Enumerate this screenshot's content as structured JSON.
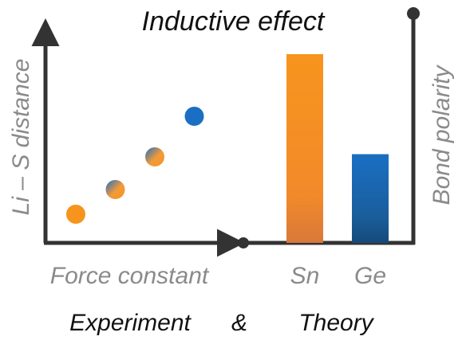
{
  "title": "Inductive effect",
  "left_panel": {
    "y_axis_label": "Li – S distance",
    "x_axis_label": "Force constant",
    "points": [
      {
        "x": 1,
        "y": 1,
        "style": "orange"
      },
      {
        "x": 2,
        "y": 2,
        "style": "orange-blue"
      },
      {
        "x": 3,
        "y": 3,
        "style": "orange-blue"
      },
      {
        "x": 4,
        "y": 4,
        "style": "blue"
      }
    ]
  },
  "right_panel": {
    "y_axis_label": "Bond polarity",
    "bars": [
      {
        "label": "Sn",
        "value": 1.0,
        "style": "orange"
      },
      {
        "label": "Ge",
        "value": 0.47,
        "style": "blue"
      }
    ]
  },
  "footer": {
    "experiment": "Experiment",
    "ampersand": "&",
    "theory": "Theory"
  },
  "colors": {
    "orange": "#f7941d",
    "orange_dark": "#e07a2a",
    "blue": "#1a6fc4",
    "blue_dark": "#154a7a",
    "axis": "#333333",
    "label_gray": "#8a8a8a"
  }
}
